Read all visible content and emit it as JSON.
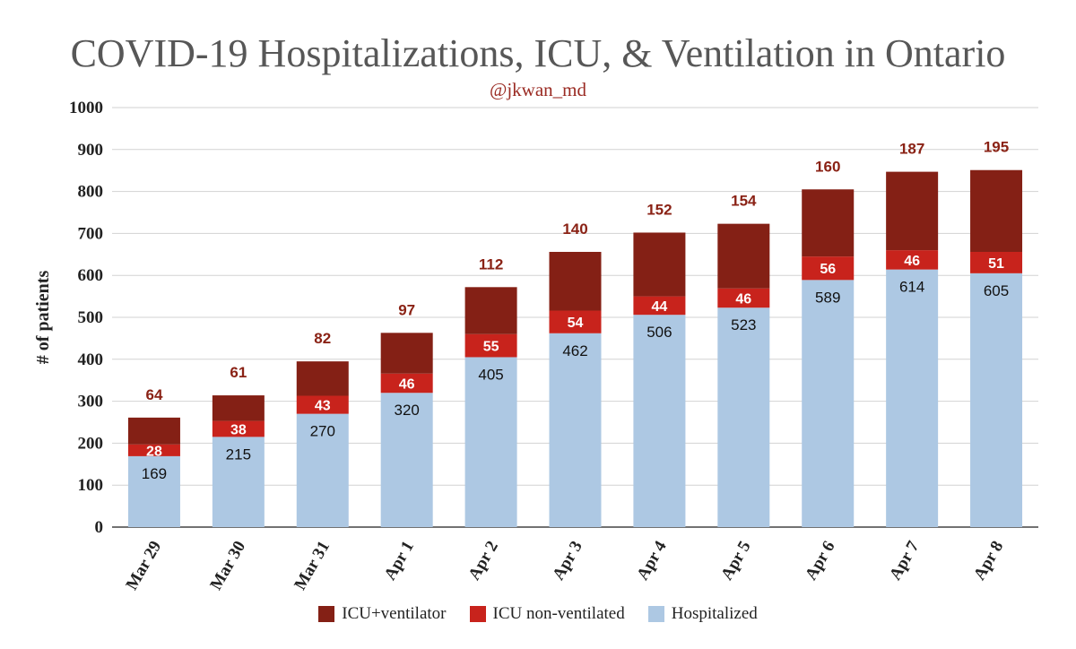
{
  "chart_data": {
    "type": "bar",
    "stacked": true,
    "title": "COVID-19 Hospitalizations, ICU, & Ventilation in Ontario",
    "subtitle": "@jkwan_md",
    "xlabel": "",
    "ylabel": "# of patients",
    "ylim": [
      0,
      1000
    ],
    "yticks": [
      0,
      100,
      200,
      300,
      400,
      500,
      600,
      700,
      800,
      900,
      1000
    ],
    "grid": true,
    "legend_placement": "bottom",
    "categories": [
      "Mar 29",
      "Mar 30",
      "Mar 31",
      "Apr 1",
      "Apr 2",
      "Apr 3",
      "Apr 4",
      "Apr 5",
      "Apr 6",
      "Apr 7",
      "Apr 8"
    ],
    "series": [
      {
        "name": "Hospitalized",
        "color": "#adc8e3",
        "values": [
          169,
          215,
          270,
          320,
          405,
          462,
          506,
          523,
          589,
          614,
          605
        ]
      },
      {
        "name": "ICU non-ventilated",
        "color": "#c8231c",
        "values": [
          28,
          38,
          43,
          46,
          55,
          54,
          44,
          46,
          56,
          46,
          51
        ]
      },
      {
        "name": "ICU+ventilator",
        "color": "#842015",
        "values": [
          64,
          61,
          82,
          97,
          112,
          140,
          152,
          154,
          160,
          187,
          195
        ]
      }
    ],
    "legend_order": [
      "ICU+ventilator",
      "ICU non-ventilated",
      "Hospitalized"
    ]
  }
}
